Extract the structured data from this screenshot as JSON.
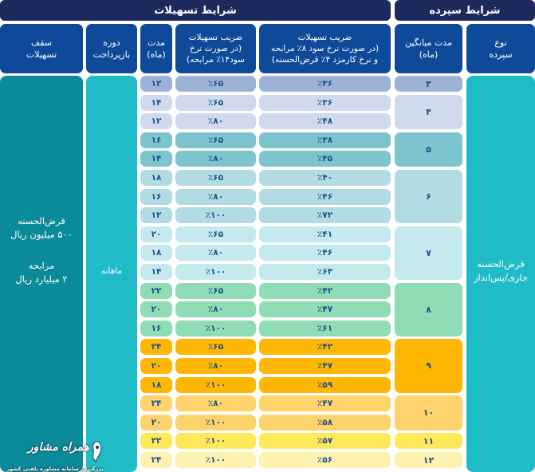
{
  "header": {
    "facility_conditions": "شرایط تسهیلات",
    "deposit_conditions": "شرایط سپرده"
  },
  "columns": {
    "facility_cap": "سقف\nتسهیلات",
    "repayment_period": "دوره\nبازپرداخت",
    "duration_months": "مدت\n(ماه)",
    "coef_14": "ضریب تسهیلات\n(در صورت نرخ\nسود۱۴٪ مرابحه)",
    "coef_8": "ضریب تسهیلات\n(در صورت نرخ سود ۸٪ مرابحه\nو نرخ کارمزد ۴٪ قرض‌الحسنه)",
    "avg_duration": "مدت میانگین\n(ماه)",
    "deposit_type": "نوع\nسپرده"
  },
  "merged": {
    "facility_cap_text1": "قرض‌الحسنه\n۵۰۰ میلیون ریال",
    "facility_cap_text2": "مرابحه\n۲ میلیارد ریال",
    "repayment_period_value": "ماهانه",
    "deposit_type_value": "قرض‌الحسنه\nجاری/پس‌انداز"
  },
  "groups": [
    {
      "avg": "۳",
      "color": "#9db3d6",
      "rows": 1
    },
    {
      "avg": "۴",
      "color": "#cfdaec",
      "rows": 2
    },
    {
      "avg": "۵",
      "color": "#7cc5cc",
      "rows": 2
    },
    {
      "avg": "۶",
      "color": "#b3dbe3",
      "rows": 3
    },
    {
      "avg": "۷",
      "color": "#c4eaee",
      "rows": 3
    },
    {
      "avg": "۸",
      "color": "#8fdcb5",
      "rows": 3
    },
    {
      "avg": "۹",
      "color": "#ffb703",
      "rows": 3
    },
    {
      "avg": "۱۰",
      "color": "#ffd36b",
      "rows": 2
    },
    {
      "avg": "۱۱",
      "color": "#fde95a",
      "rows": 1
    },
    {
      "avg": "۱۲",
      "color": "#fdf2b0",
      "rows": 1
    }
  ],
  "rows": [
    {
      "duration": "۱۲",
      "coef14": "٪۶۵",
      "coef8": "٪۳۶",
      "color": "#9db3d6"
    },
    {
      "duration": "۱۴",
      "coef14": "٪۶۵",
      "coef8": "٪۳۶",
      "color": "#cfdaec"
    },
    {
      "duration": "۱۲",
      "coef14": "٪۸۰",
      "coef8": "٪۴۸",
      "color": "#cfdaec"
    },
    {
      "duration": "۱۶",
      "coef14": "٪۶۵",
      "coef8": "٪۳۸",
      "color": "#7cc5cc"
    },
    {
      "duration": "۱۴",
      "coef14": "٪۸۰",
      "coef8": "٪۴۵",
      "color": "#7cc5cc"
    },
    {
      "duration": "۱۸",
      "coef14": "٪۶۵",
      "coef8": "٪۴۰",
      "color": "#b3dbe3"
    },
    {
      "duration": "۱۶",
      "coef14": "٪۸۰",
      "coef8": "٪۴۶",
      "color": "#b3dbe3"
    },
    {
      "duration": "۱۲",
      "coef14": "٪۱۰۰",
      "coef8": "٪۷۲",
      "color": "#b3dbe3"
    },
    {
      "duration": "۲۰",
      "coef14": "٪۶۵",
      "coef8": "٪۴۱",
      "color": "#c4eaee"
    },
    {
      "duration": "۱۸",
      "coef14": "٪۸۰",
      "coef8": "٪۴۶",
      "color": "#c4eaee"
    },
    {
      "duration": "۱۴",
      "coef14": "٪۱۰۰",
      "coef8": "٪۶۳",
      "color": "#c4eaee"
    },
    {
      "duration": "۲۲",
      "coef14": "٪۶۵",
      "coef8": "٪۴۲",
      "color": "#8fdcb5"
    },
    {
      "duration": "۲۰",
      "coef14": "٪۸۰",
      "coef8": "٪۴۷",
      "color": "#8fdcb5"
    },
    {
      "duration": "۱۶",
      "coef14": "٪۱۰۰",
      "coef8": "٪۶۱",
      "color": "#8fdcb5"
    },
    {
      "duration": "۲۴",
      "coef14": "٪۶۵",
      "coef8": "٪۴۲",
      "color": "#ffb703"
    },
    {
      "duration": "۲۰",
      "coef14": "٪۸۰",
      "coef8": "٪۴۷",
      "color": "#ffb703"
    },
    {
      "duration": "۱۸",
      "coef14": "٪۱۰۰",
      "coef8": "٪۵۹",
      "color": "#ffb703"
    },
    {
      "duration": "۲۴",
      "coef14": "٪۸۰",
      "coef8": "٪۴۷",
      "color": "#ffd36b"
    },
    {
      "duration": "۲۰",
      "coef14": "٪۱۰۰",
      "coef8": "٪۵۸",
      "color": "#ffd36b"
    },
    {
      "duration": "۲۲",
      "coef14": "٪۱۰۰",
      "coef8": "٪۵۷",
      "color": "#fde95a"
    },
    {
      "duration": "۲۴",
      "coef14": "٪۱۰۰",
      "coef8": "٪۵۶",
      "color": "#fdf2b0"
    }
  ],
  "watermark": {
    "title": "همراه مشاور",
    "subtitle": "بزرگترین سامانه مشاوره تلفنی کشور"
  },
  "colors": {
    "header_dark": "#1e2a5e",
    "header_blue": "#0f4a9a",
    "cap_teal": "#0b8a9a",
    "teal": "#1fbcc8",
    "text_blue": "#1f4f8a"
  }
}
